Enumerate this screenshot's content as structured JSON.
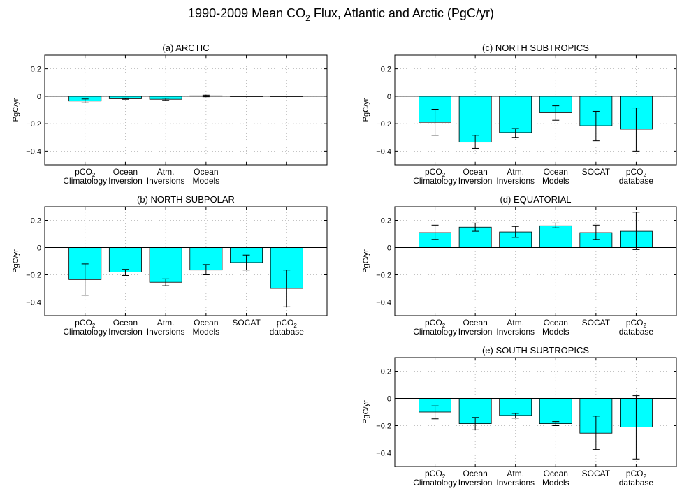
{
  "figure": {
    "title_main": "1990-2009 Mean CO",
    "title_sub": "2",
    "title_rest": " Flux, Atlantic and Arctic (PgC/yr)"
  },
  "colors": {
    "bar_fill": "#00ffff",
    "bar_stroke": "#000000",
    "grid": "#b0b0b0"
  },
  "chart_data": [
    {
      "type": "bar",
      "panel": "arctic",
      "title": "(a) ARCTIC",
      "ylabel": "PgC/yr",
      "ylim": [
        -0.5,
        0.3
      ],
      "yticks": [
        0.2,
        0,
        -0.2,
        -0.4
      ],
      "ytick_labels": [
        "0.2",
        "0",
        "−0.2",
        "−0.4"
      ],
      "grid": true,
      "categories": [
        {
          "l1": "pCO",
          "l1sub": "2",
          "l2": "Climatology"
        },
        {
          "l1": "Ocean",
          "l1sub": "",
          "l2": "Inversion"
        },
        {
          "l1": "Atm.",
          "l1sub": "",
          "l2": "Inversions"
        },
        {
          "l1": "Ocean",
          "l1sub": "",
          "l2": "Models"
        },
        {
          "l1": "",
          "l1sub": "",
          "l2": ""
        },
        {
          "l1": "",
          "l1sub": "",
          "l2": ""
        }
      ],
      "values": [
        -0.035,
        -0.018,
        -0.022,
        0.003,
        -0.003,
        -0.002
      ],
      "err_low": [
        -0.048,
        -0.022,
        -0.03,
        -0.004,
        -0.003,
        -0.002
      ],
      "err_high": [
        -0.02,
        -0.013,
        -0.014,
        0.008,
        -0.003,
        -0.002
      ]
    },
    {
      "type": "bar",
      "panel": "north_subpolar",
      "title": "(b) NORTH SUBPOLAR",
      "ylabel": "PgC/yr",
      "ylim": [
        -0.5,
        0.3
      ],
      "yticks": [
        0.2,
        0,
        -0.2,
        -0.4
      ],
      "ytick_labels": [
        "0.2",
        "0",
        "−0.2",
        "−0.4"
      ],
      "grid": true,
      "categories": [
        {
          "l1": "pCO",
          "l1sub": "2",
          "l2": "Climatology"
        },
        {
          "l1": "Ocean",
          "l1sub": "",
          "l2": "Inversion"
        },
        {
          "l1": "Atm.",
          "l1sub": "",
          "l2": "Inversions"
        },
        {
          "l1": "Ocean",
          "l1sub": "",
          "l2": "Models"
        },
        {
          "l1": "SOCAT",
          "l1sub": "",
          "l2": ""
        },
        {
          "l1": "pCO",
          "l1sub": "2",
          "l2": "database"
        }
      ],
      "values": [
        -0.235,
        -0.18,
        -0.255,
        -0.165,
        -0.11,
        -0.3
      ],
      "err_low": [
        -0.35,
        -0.205,
        -0.28,
        -0.2,
        -0.165,
        -0.435
      ],
      "err_high": [
        -0.12,
        -0.16,
        -0.23,
        -0.125,
        -0.055,
        -0.165
      ]
    },
    {
      "type": "bar",
      "panel": "north_subtropics",
      "title": "(c) NORTH SUBTROPICS",
      "ylabel": "PgC/yr",
      "ylim": [
        -0.5,
        0.3
      ],
      "yticks": [
        0.2,
        0,
        -0.2,
        -0.4
      ],
      "ytick_labels": [
        "0.2",
        "0",
        "−0.2",
        "−0.4"
      ],
      "grid": true,
      "categories": [
        {
          "l1": "pCO",
          "l1sub": "2",
          "l2": "Climatology"
        },
        {
          "l1": "Ocean",
          "l1sub": "",
          "l2": "Inversion"
        },
        {
          "l1": "Atm.",
          "l1sub": "",
          "l2": "Inversions"
        },
        {
          "l1": "Ocean",
          "l1sub": "",
          "l2": "Models"
        },
        {
          "l1": "SOCAT",
          "l1sub": "",
          "l2": ""
        },
        {
          "l1": "pCO",
          "l1sub": "2",
          "l2": "database"
        }
      ],
      "values": [
        -0.19,
        -0.335,
        -0.265,
        -0.12,
        -0.215,
        -0.24
      ],
      "err_low": [
        -0.285,
        -0.38,
        -0.3,
        -0.175,
        -0.325,
        -0.4
      ],
      "err_high": [
        -0.095,
        -0.285,
        -0.235,
        -0.07,
        -0.11,
        -0.085
      ]
    },
    {
      "type": "bar",
      "panel": "equatorial",
      "title": "(d) EQUATORIAL",
      "ylabel": "PgC/yr",
      "ylim": [
        -0.5,
        0.3
      ],
      "yticks": [
        0.2,
        0,
        -0.2,
        -0.4
      ],
      "ytick_labels": [
        "0.2",
        "0",
        "−0.2",
        "−0.4"
      ],
      "grid": true,
      "categories": [
        {
          "l1": "pCO",
          "l1sub": "2",
          "l2": "Climatology"
        },
        {
          "l1": "Ocean",
          "l1sub": "",
          "l2": "Inversion"
        },
        {
          "l1": "Atm.",
          "l1sub": "",
          "l2": "Inversions"
        },
        {
          "l1": "Ocean",
          "l1sub": "",
          "l2": "Models"
        },
        {
          "l1": "SOCAT",
          "l1sub": "",
          "l2": ""
        },
        {
          "l1": "pCO",
          "l1sub": "2",
          "l2": "database"
        }
      ],
      "values": [
        0.11,
        0.15,
        0.115,
        0.16,
        0.11,
        0.12
      ],
      "err_low": [
        0.06,
        0.12,
        0.075,
        0.145,
        0.06,
        -0.015
      ],
      "err_high": [
        0.165,
        0.18,
        0.155,
        0.18,
        0.165,
        0.26
      ]
    },
    {
      "type": "bar",
      "panel": "south_subtropics",
      "title": "(e) SOUTH SUBTROPICS",
      "ylabel": "PgC/yr",
      "ylim": [
        -0.5,
        0.3
      ],
      "yticks": [
        0.2,
        0,
        -0.2,
        -0.4
      ],
      "ytick_labels": [
        "0.2",
        "0",
        "−0.2",
        "−0.4"
      ],
      "grid": true,
      "categories": [
        {
          "l1": "pCO",
          "l1sub": "2",
          "l2": "Climatology"
        },
        {
          "l1": "Ocean",
          "l1sub": "",
          "l2": "Inversion"
        },
        {
          "l1": "Atm.",
          "l1sub": "",
          "l2": "Inversions"
        },
        {
          "l1": "Ocean",
          "l1sub": "",
          "l2": "Models"
        },
        {
          "l1": "SOCAT",
          "l1sub": "",
          "l2": ""
        },
        {
          "l1": "pCO",
          "l1sub": "2",
          "l2": "database"
        }
      ],
      "values": [
        -0.1,
        -0.185,
        -0.125,
        -0.185,
        -0.255,
        -0.21
      ],
      "err_low": [
        -0.15,
        -0.23,
        -0.145,
        -0.2,
        -0.375,
        -0.445
      ],
      "err_high": [
        -0.055,
        -0.14,
        -0.11,
        -0.17,
        -0.13,
        0.02
      ]
    }
  ]
}
